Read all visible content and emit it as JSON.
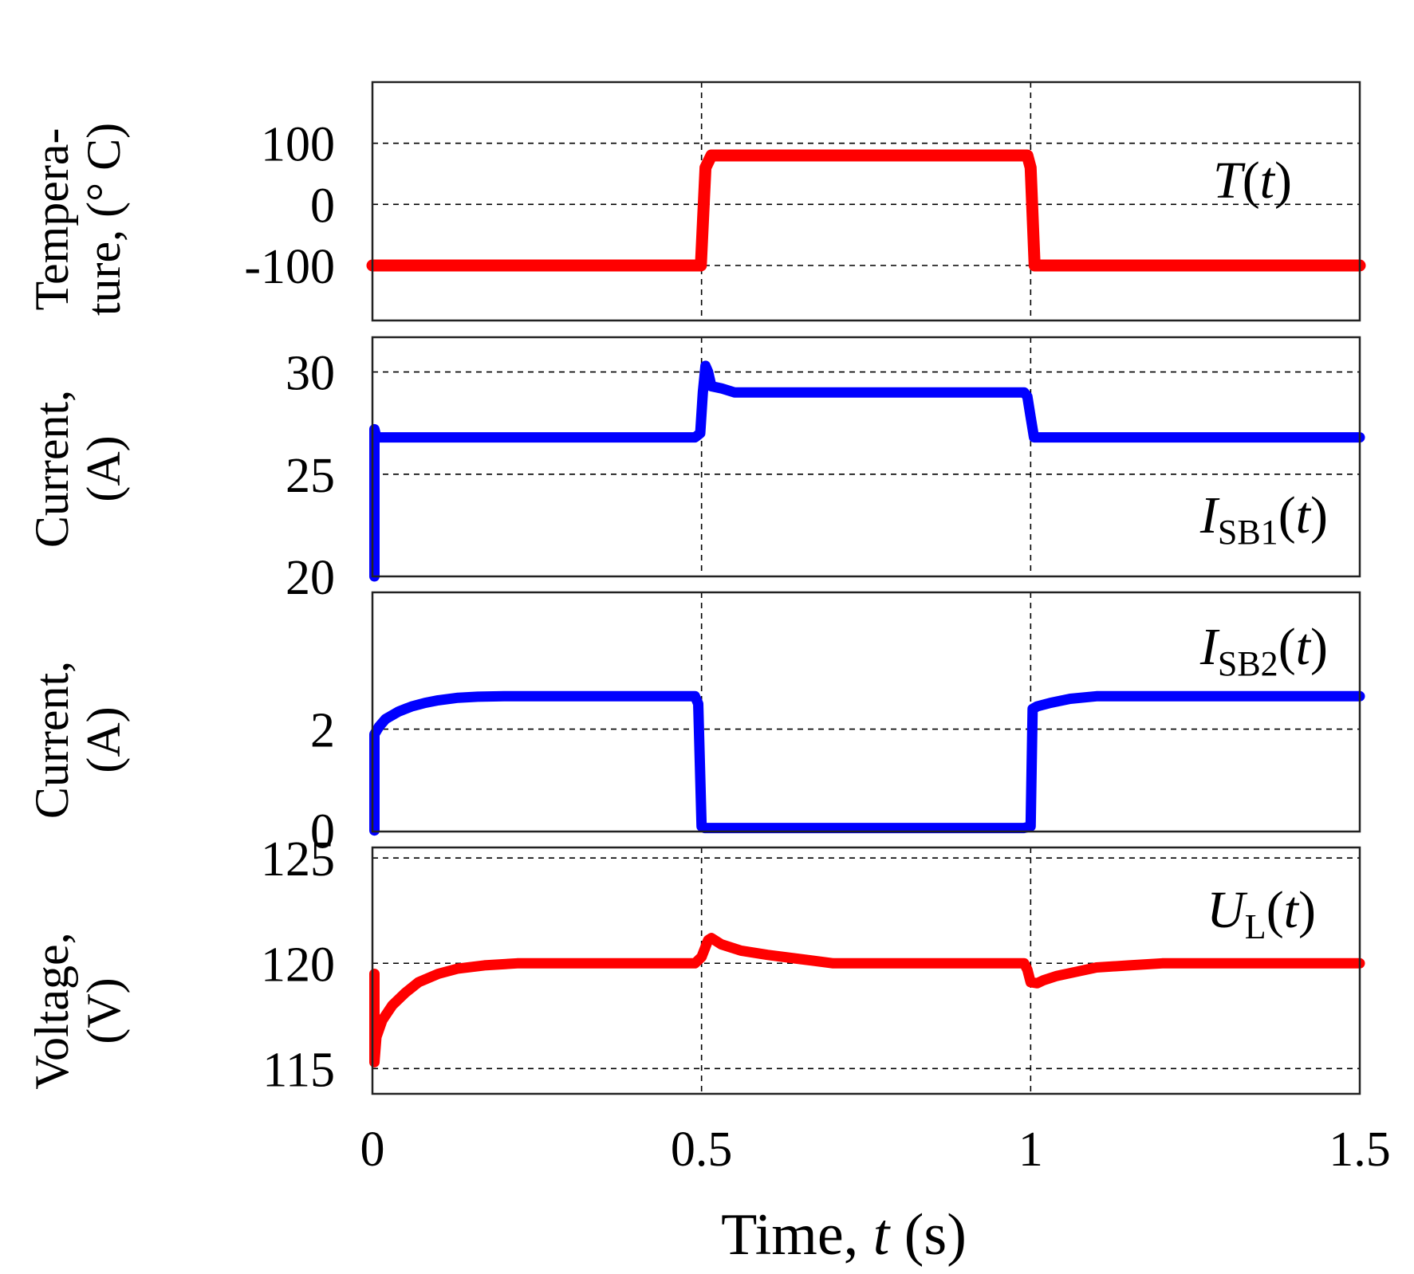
{
  "chart_data": [
    {
      "type": "line",
      "panel": "temperature",
      "ylabel_lines": [
        "Tempera-",
        "ture, (° C)"
      ],
      "trace_label": {
        "main": "T",
        "sub": "",
        "arg": "(t)"
      },
      "yticks": [
        {
          "value": 100,
          "label": "100"
        },
        {
          "value": 0,
          "label": "0"
        },
        {
          "value": -100,
          "label": "-100"
        }
      ],
      "ylim": [
        -190,
        200
      ],
      "series": [
        {
          "name": "T(t)",
          "color": "#ff0000",
          "x": [
            0,
            0.499,
            0.506,
            0.515,
            0.995,
            1.0,
            1.006,
            1.5
          ],
          "y": [
            -100,
            -100,
            60,
            80,
            80,
            60,
            -100,
            -100
          ]
        }
      ]
    },
    {
      "type": "line",
      "panel": "current_sb1",
      "ylabel_lines": [
        "Current,",
        "(A)"
      ],
      "trace_label": {
        "main": "I",
        "sub": "SB1",
        "arg": "(t)"
      },
      "yticks": [
        {
          "value": 30,
          "label": "30"
        },
        {
          "value": 25,
          "label": "25"
        },
        {
          "value": 20,
          "label": "20"
        }
      ],
      "ylim": [
        20,
        31.7
      ],
      "series": [
        {
          "name": "I_SB1(t)",
          "color": "#0000ff",
          "x": [
            0.003,
            0.003,
            0.006,
            0.03,
            0.49,
            0.498,
            0.502,
            0.506,
            0.51,
            0.515,
            0.53,
            0.55,
            0.99,
            0.995,
            1.0,
            1.005,
            1.5
          ],
          "y": [
            20,
            27.2,
            26.8,
            26.8,
            26.8,
            27,
            29,
            30.3,
            30,
            29.3,
            29.2,
            29,
            29,
            28.8,
            27.8,
            26.8,
            26.8
          ]
        }
      ]
    },
    {
      "type": "line",
      "panel": "current_sb2",
      "ylabel_lines": [
        "Current,",
        "(A)"
      ],
      "trace_label": {
        "main": "I",
        "sub": "SB2",
        "arg": "(t)"
      },
      "yticks": [
        {
          "value": 2,
          "label": "2"
        },
        {
          "value": 0,
          "label": "0"
        }
      ],
      "ylim": [
        -0.02,
        4.7
      ],
      "series": [
        {
          "name": "I_SB2(t)",
          "color": "#0000ff",
          "x": [
            0.003,
            0.003,
            0.01,
            0.02,
            0.04,
            0.06,
            0.08,
            0.1,
            0.13,
            0.16,
            0.2,
            0.3,
            0.49,
            0.495,
            0.5,
            0.505,
            0.6,
            0.99,
            1.0,
            1.003,
            1.01,
            1.03,
            1.06,
            1.1,
            1.5
          ],
          "y": [
            0,
            1.9,
            2.05,
            2.2,
            2.35,
            2.45,
            2.52,
            2.57,
            2.62,
            2.64,
            2.65,
            2.65,
            2.65,
            2.5,
            0.08,
            0.05,
            0.05,
            0.05,
            0.08,
            2.4,
            2.45,
            2.52,
            2.6,
            2.65,
            2.65
          ]
        }
      ]
    },
    {
      "type": "line",
      "panel": "voltage",
      "ylabel_lines": [
        "Voltage,",
        "(V)"
      ],
      "trace_label": {
        "main": "U",
        "sub": "L",
        "arg": "(t)"
      },
      "yticks": [
        {
          "value": 125,
          "label": "125"
        },
        {
          "value": 120,
          "label": "120"
        },
        {
          "value": 115,
          "label": "115"
        }
      ],
      "ylim": [
        113.8,
        125.5
      ],
      "series": [
        {
          "name": "U_L(t)",
          "color": "#ff0000",
          "x": [
            0.003,
            0.003,
            0.006,
            0.015,
            0.03,
            0.05,
            0.07,
            0.1,
            0.13,
            0.17,
            0.22,
            0.3,
            0.49,
            0.5,
            0.51,
            0.515,
            0.53,
            0.56,
            0.6,
            0.65,
            0.7,
            0.99,
            0.995,
            1.0,
            1.01,
            1.02,
            1.04,
            1.07,
            1.1,
            1.15,
            1.2,
            1.3,
            1.5
          ],
          "y": [
            119.5,
            115.3,
            116.5,
            117.3,
            118,
            118.6,
            119.1,
            119.5,
            119.75,
            119.9,
            120,
            120,
            120,
            120.3,
            121.1,
            121.2,
            120.9,
            120.6,
            120.4,
            120.2,
            120,
            120,
            119.7,
            119.1,
            119.05,
            119.2,
            119.4,
            119.6,
            119.8,
            119.9,
            120,
            120,
            120
          ]
        }
      ]
    }
  ],
  "x_axis": {
    "ticks": [
      {
        "value": 0,
        "label": "0"
      },
      {
        "value": 0.5,
        "label": "0.5"
      },
      {
        "value": 1,
        "label": "1"
      },
      {
        "value": 1.5,
        "label": "1.5"
      }
    ],
    "xlim": [
      0,
      1.5
    ],
    "label_prefix": "Time, ",
    "label_var": "t",
    "label_suffix": " (s)"
  }
}
